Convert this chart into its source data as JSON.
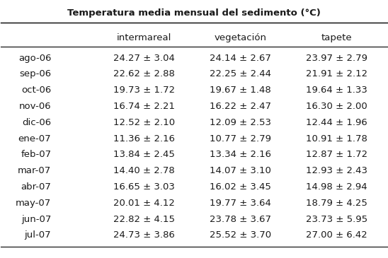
{
  "title": "Temperatura media mensual del sedimento (°C)",
  "col_headers": [
    "intermareal",
    "vegetación",
    "tapete"
  ],
  "row_labels": [
    "ago-06",
    "sep-06",
    "oct-06",
    "nov-06",
    "dic-06",
    "ene-07",
    "feb-07",
    "mar-07",
    "abr-07",
    "may-07",
    "jun-07",
    "jul-07"
  ],
  "intermareal": [
    "24.27 ± 3.04",
    "22.62 ± 2.88",
    "19.73 ± 1.72",
    "16.74 ± 2.21",
    "12.52 ± 2.10",
    "11.36 ± 2.16",
    "13.84 ± 2.45",
    "14.40 ± 2.78",
    "16.65 ± 3.03",
    "20.01 ± 4.12",
    "22.82 ± 4.15",
    "24.73 ± 3.86"
  ],
  "vegetacion": [
    "24.14 ± 2.67",
    "22.25 ± 2.44",
    "19.67 ± 1.48",
    "16.22 ± 2.47",
    "12.09 ± 2.53",
    "10.77 ± 2.79",
    "13.34 ± 2.16",
    "14.07 ± 3.10",
    "16.02 ± 3.45",
    "19.77 ± 3.64",
    "23.78 ± 3.67",
    "25.52 ± 3.70"
  ],
  "tapete": [
    "23.97 ± 2.79",
    "21.91 ± 2.12",
    "19.64 ± 1.33",
    "16.30 ± 2.00",
    "12.44 ± 1.96",
    "10.91 ± 1.78",
    "12.87 ± 1.72",
    "12.93 ± 2.43",
    "14.98 ± 2.94",
    "18.79 ± 4.25",
    "23.73 ± 5.95",
    "27.00 ± 6.42"
  ],
  "bg_color": "#ffffff",
  "text_color": "#1a1a1a",
  "title_fontsize": 9.5,
  "header_fontsize": 9.5,
  "cell_fontsize": 9.5,
  "row_label_fontsize": 9.5
}
